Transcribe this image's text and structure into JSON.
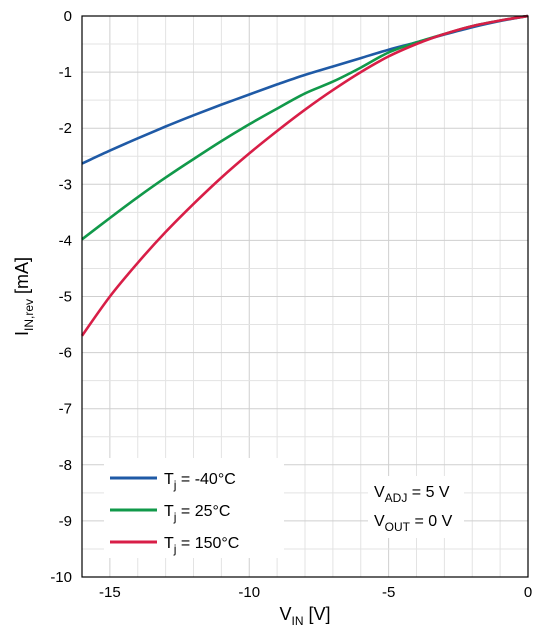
{
  "chart_data": {
    "type": "line",
    "xlabel": {
      "main": "V",
      "sub": "IN",
      "unit": " [V]"
    },
    "ylabel": {
      "main": "I",
      "sub": "IN,rev",
      "unit": " [mA]"
    },
    "xlim": [
      -16,
      0
    ],
    "ylim": [
      -10,
      0
    ],
    "xticks": [
      -15,
      -10,
      -5,
      0
    ],
    "yticks": [
      0,
      -1,
      -2,
      -3,
      -4,
      -5,
      -6,
      -7,
      -8,
      -9,
      -10
    ],
    "xtick_labels": [
      "-15",
      "-10",
      "-5",
      "0"
    ],
    "ytick_labels": [
      "0",
      "-1",
      "-2",
      "-3",
      "-4",
      "-5",
      "-6",
      "-7",
      "-8",
      "-9",
      "-10"
    ],
    "grid": true,
    "legend_position": "bottom-left",
    "series": [
      {
        "name": "Tj = -40°C",
        "label": {
          "main": "T",
          "sub": "j",
          "rest": " = -40°C"
        },
        "color": "#1f5aa6",
        "x": [
          -16,
          -15,
          -14,
          -13,
          -12,
          -11,
          -10,
          -9,
          -8,
          -7,
          -6,
          -5,
          -4,
          -3,
          -2,
          -1,
          0
        ],
        "y": [
          -2.63,
          -2.4,
          -2.18,
          -1.97,
          -1.77,
          -1.58,
          -1.4,
          -1.22,
          -1.05,
          -0.9,
          -0.75,
          -0.6,
          -0.47,
          -0.33,
          -0.2,
          -0.09,
          0
        ]
      },
      {
        "name": "Tj = 25°C",
        "label": {
          "main": "T",
          "sub": "j",
          "rest": " = 25°C"
        },
        "color": "#11994a",
        "x": [
          -16,
          -15,
          -14,
          -13,
          -12,
          -11,
          -10,
          -9,
          -8,
          -7,
          -6,
          -5,
          -4,
          -3,
          -2,
          -1,
          0
        ],
        "y": [
          -3.98,
          -3.6,
          -3.23,
          -2.88,
          -2.55,
          -2.23,
          -1.93,
          -1.65,
          -1.38,
          -1.17,
          -0.92,
          -0.65,
          -0.47,
          -0.32,
          -0.18,
          -0.08,
          0
        ]
      },
      {
        "name": "Tj = 150°C",
        "label": {
          "main": "T",
          "sub": "j",
          "rest": " = 150°C"
        },
        "color": "#d81e47",
        "x": [
          -16,
          -15,
          -14,
          -13,
          -12,
          -11,
          -10,
          -9,
          -8,
          -7,
          -6,
          -5,
          -4,
          -3,
          -2,
          -1,
          0
        ],
        "y": [
          -5.7,
          -5.0,
          -4.4,
          -3.85,
          -3.35,
          -2.88,
          -2.45,
          -2.05,
          -1.67,
          -1.32,
          -1.0,
          -0.72,
          -0.5,
          -0.32,
          -0.18,
          -0.08,
          0
        ]
      }
    ],
    "annotation": [
      {
        "main": "V",
        "sub": "ADJ",
        "rest": " = 5 V"
      },
      {
        "main": "V",
        "sub": "OUT",
        "rest": " = 0 V"
      }
    ]
  }
}
